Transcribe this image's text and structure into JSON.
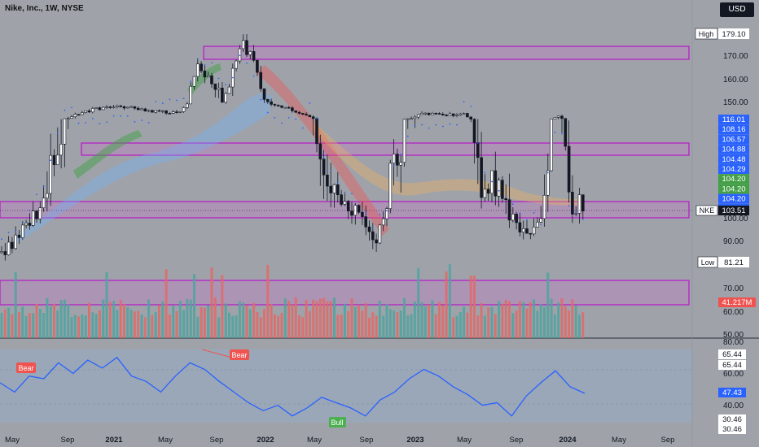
{
  "header": {
    "title": "Nike, Inc., 1W, NYSE",
    "currency": "USD"
  },
  "price_axis": {
    "ticks": [
      "170.00",
      "160.00",
      "150.00",
      "100.00",
      "90.00",
      "70.00",
      "60.00",
      "50.00"
    ],
    "high_label": "High",
    "high_value": "179.10",
    "low_label": "Low",
    "low_value": "81.21",
    "ticker": "NKE",
    "last_price": "103.51",
    "volume_label": "41.217M",
    "ma_tags": [
      {
        "value": "116.01",
        "color": "#2962ff"
      },
      {
        "value": "108.16",
        "color": "#2962ff"
      },
      {
        "value": "106.57",
        "color": "#2962ff"
      },
      {
        "value": "104.88",
        "color": "#2962ff"
      },
      {
        "value": "104.48",
        "color": "#2962ff"
      },
      {
        "value": "104.29",
        "color": "#2962ff"
      },
      {
        "value": "104.20",
        "color": "#43a047"
      },
      {
        "value": "104.20",
        "color": "#43a047"
      },
      {
        "value": "104.20",
        "color": "#2962ff"
      },
      {
        "value": "103.55",
        "color": "#2962ff"
      }
    ]
  },
  "rsi_axis": {
    "ticks": [
      "80.00",
      "60.00",
      "40.00"
    ],
    "tags": [
      {
        "value": "65.44",
        "dark": false
      },
      {
        "value": "65.44",
        "dark": false
      },
      {
        "value": "47.43",
        "dark": false,
        "blue": true
      },
      {
        "value": "30.46",
        "dark": false
      },
      {
        "value": "30.46",
        "dark": false
      }
    ],
    "signals": [
      {
        "label": "Bear",
        "color": "#ef5350"
      },
      {
        "label": "Bear",
        "color": "#ef5350"
      },
      {
        "label": "Bull",
        "color": "#4caf50"
      }
    ]
  },
  "time_axis": [
    "May",
    "Sep",
    "2021",
    "May",
    "Sep",
    "2022",
    "May",
    "Sep",
    "2023",
    "May",
    "Sep",
    "2024",
    "May",
    "Sep"
  ],
  "chart_data": {
    "type": "candlestick",
    "title": "Nike, Inc., 1W, NYSE",
    "ylim": [
      80,
      180
    ],
    "price_series": {
      "dates": [
        "2020-05",
        "2020-09",
        "2021-01",
        "2021-05",
        "2021-09",
        "2022-01",
        "2022-05",
        "2022-09",
        "2023-01",
        "2023-05",
        "2023-09",
        "2024-01",
        "2024-02"
      ],
      "close": [
        85,
        110,
        140,
        145,
        165,
        155,
        120,
        90,
        125,
        115,
        95,
        105,
        103.51
      ]
    },
    "zones": [
      {
        "from": 170,
        "to": 172.5
      },
      {
        "from": 124,
        "to": 126.5
      },
      {
        "from": 100,
        "to": 105
      }
    ],
    "rsi": {
      "ylim": [
        25,
        80
      ],
      "values": [
        55,
        48,
        60,
        58,
        70,
        62,
        72,
        66,
        74,
        60,
        56,
        48,
        60,
        70,
        65,
        56,
        48,
        40,
        34,
        38,
        30,
        36,
        44,
        40,
        36,
        30,
        42,
        48,
        58,
        65,
        60,
        52,
        46,
        38,
        40,
        30,
        45,
        55,
        64,
        52,
        47
      ]
    }
  }
}
